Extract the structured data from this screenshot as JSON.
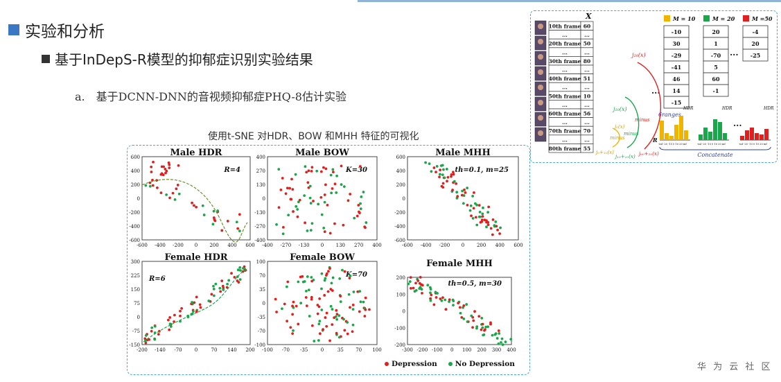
{
  "heading": {
    "title": "实验和分析",
    "subtitle": "基于InDepS-R模型的抑郁症识别实验结果"
  },
  "section": {
    "label": "a.",
    "text": "基于DCNN-DNN的音视频抑郁症PHQ-8估计实验"
  },
  "tsne_caption": "使用t-SNE 对HDR、BOW 和MHH 特征的可视化",
  "legend": {
    "depression": "Depression",
    "no_depression": "No Depression"
  },
  "colors": {
    "depression": "#e0201e",
    "no_depression": "#1aa64a",
    "accent": "#3a78c3",
    "frame_border": "#4aa7c8"
  },
  "footer": "华 为 云 社 区",
  "chart_data": [
    {
      "type": "scatter",
      "title": "Male HDR",
      "param": "R=4",
      "xticks": [
        "-600",
        "-400",
        "-200",
        "0",
        "200",
        "400",
        "600"
      ],
      "yticks": [
        "600",
        "400",
        "200",
        "0",
        "-200",
        "-400",
        "-600"
      ],
      "xlim": [
        -600,
        600
      ],
      "ylim": [
        -600,
        600
      ]
    },
    {
      "type": "scatter",
      "title": "Male BOW",
      "param": "K=30",
      "xticks": [
        "-400",
        "-270",
        "-130",
        "0",
        "130",
        "270",
        "400"
      ],
      "yticks": [
        "400",
        "270",
        "130",
        "0",
        "-130",
        "-270",
        "-400"
      ],
      "xlim": [
        -400,
        400
      ],
      "ylim": [
        -400,
        400
      ]
    },
    {
      "type": "scatter",
      "title": "Male MHH",
      "param": "th=0.1, m=25",
      "xticks": [
        "-600",
        "-400",
        "-200",
        "0",
        "200",
        "400",
        "600"
      ],
      "yticks": [
        "600",
        "400",
        "200",
        "0",
        "-200",
        "-400",
        "-600"
      ],
      "xlim": [
        -600,
        600
      ],
      "ylim": [
        -600,
        600
      ]
    },
    {
      "type": "scatter",
      "title": "Female HDR",
      "param": "R=6",
      "xticks": [
        "-200",
        "-140",
        "-70",
        "0",
        "70",
        "140",
        "200"
      ],
      "yticks": [
        "300",
        "225",
        "150",
        "75",
        "0",
        "-75",
        "-150"
      ],
      "xlim": [
        -200,
        200
      ],
      "ylim": [
        -150,
        300
      ]
    },
    {
      "type": "scatter",
      "title": "Female BOW",
      "param": "K=70",
      "xticks": [
        "-100",
        "-70",
        "-35",
        "0",
        "35",
        "70",
        "100"
      ],
      "yticks": [
        "100",
        "70",
        "35",
        "0",
        "-35",
        "-70",
        "-100"
      ],
      "xlim": [
        -100,
        100
      ],
      "ylim": [
        -100,
        100
      ]
    },
    {
      "type": "scatter",
      "title": "Female MHH",
      "param": "th=0.5, m=30",
      "xticks": [
        "-300",
        "-200",
        "-100",
        "0",
        "100",
        "200",
        "300",
        "400"
      ],
      "yticks": [
        "200",
        "100",
        "0",
        "-100",
        "-200"
      ],
      "xlim": [
        -300,
        400
      ],
      "ylim": [
        -200,
        200
      ]
    }
  ],
  "diagram": {
    "x_label": "X",
    "frames": [
      {
        "label": "10th frame",
        "value": "60"
      },
      {
        "label": "...",
        "value": "..."
      },
      {
        "label": "20th frame",
        "value": "50"
      },
      {
        "label": "...",
        "value": "..."
      },
      {
        "label": "30th frame",
        "value": "80"
      },
      {
        "label": "...",
        "value": "..."
      },
      {
        "label": "40th frame",
        "value": "51"
      },
      {
        "label": "...",
        "value": "..."
      },
      {
        "label": "50th frame",
        "value": "10"
      },
      {
        "label": "...",
        "value": "..."
      },
      {
        "label": "60th frame",
        "value": "56"
      },
      {
        "label": "...",
        "value": "..."
      },
      {
        "label": "70th frame",
        "value": "70"
      },
      {
        "label": "...",
        "value": "..."
      },
      {
        "label": "80th frame",
        "value": "55"
      }
    ],
    "m_groups": [
      {
        "label": "M = 10",
        "color": "#f0b400",
        "values": [
          "-10",
          "30",
          "-29",
          "-41",
          "46",
          "14",
          "-15"
        ]
      },
      {
        "label": "M = 20",
        "color": "#1aa64a",
        "values": [
          "20",
          "1",
          "-70",
          "5",
          "60",
          "-1"
        ]
      },
      {
        "label": "M =50",
        "color": "#e0201e",
        "values": [
          "-4",
          "20",
          "-25"
        ]
      }
    ],
    "ellipsis": "...",
    "fn_red": "j₂₀(x)",
    "fn_green": "j₁₀(x)",
    "fn_yellow": "j₀(x)",
    "fn_red_bottom": "j₆₀+₂₀(x)",
    "fn_green_bottom": "j₁₀+₁₀(x)",
    "fn_yellow_bottom": "j₀+₁₀(x)",
    "minus": "minus",
    "six_ranges": "6ranges",
    "hdr": "HDR",
    "r_label": "R",
    "concatenate": "Concatenate",
    "hist_ticks": "-inf -20 -10 0 10 20 inf"
  }
}
